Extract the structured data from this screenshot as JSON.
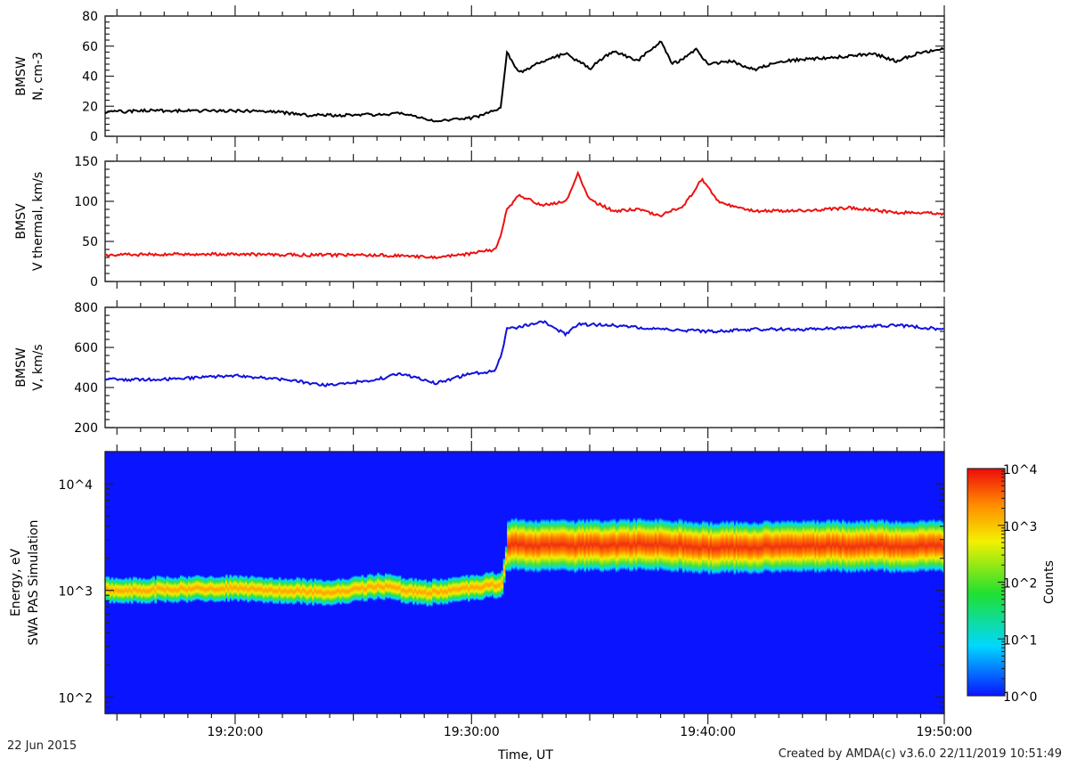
{
  "chart_data": [
    {
      "type": "line",
      "ylabel": [
        "BMSW",
        "N, cm-3"
      ],
      "ylim": [
        0,
        80
      ],
      "yticks": [
        0,
        20,
        40,
        60,
        80
      ],
      "color": "#000000",
      "series": [
        {
          "x": [
            "19:14:30",
            "19:16:00",
            "19:18:00",
            "19:20:00",
            "19:22:00",
            "19:23:00",
            "19:25:00",
            "19:27:00",
            "19:28:30",
            "19:30:00",
            "19:31:00",
            "19:31:15",
            "19:31:30",
            "19:32:00",
            "19:33:00",
            "19:34:00",
            "19:35:00",
            "19:36:00",
            "19:37:00",
            "19:38:00",
            "19:38:30",
            "19:39:00",
            "19:39:30",
            "19:40:00",
            "19:41:00",
            "19:42:00",
            "19:43:00",
            "19:45:00",
            "19:47:00",
            "19:48:00",
            "19:49:00",
            "19:50:00"
          ],
          "y": [
            16,
            17,
            17,
            17,
            16,
            14,
            14,
            15,
            10,
            12,
            17,
            20,
            56,
            42,
            50,
            55,
            45,
            57,
            50,
            63,
            48,
            52,
            58,
            48,
            50,
            44,
            50,
            52,
            55,
            50,
            56,
            58
          ]
        }
      ]
    },
    {
      "type": "line",
      "ylabel": [
        "BMSV",
        "V thermal, km/s"
      ],
      "ylim": [
        0,
        150
      ],
      "yticks": [
        0,
        50,
        100,
        150
      ],
      "color": "#ee1111",
      "series": [
        {
          "x": [
            "19:14:30",
            "19:17:00",
            "19:20:00",
            "19:23:00",
            "19:26:00",
            "19:28:30",
            "19:30:00",
            "19:31:00",
            "19:31:15",
            "19:31:30",
            "19:32:00",
            "19:33:00",
            "19:34:00",
            "19:34:30",
            "19:35:00",
            "19:36:00",
            "19:37:00",
            "19:38:00",
            "19:39:00",
            "19:39:45",
            "19:40:30",
            "19:42:00",
            "19:44:00",
            "19:46:00",
            "19:48:00",
            "19:50:00"
          ],
          "y": [
            33,
            34,
            34,
            33,
            33,
            30,
            35,
            40,
            60,
            90,
            108,
            95,
            100,
            135,
            102,
            88,
            90,
            82,
            95,
            128,
            98,
            88,
            88,
            92,
            86,
            85
          ]
        }
      ]
    },
    {
      "type": "line",
      "ylabel": [
        "BMSW",
        "V, km/s"
      ],
      "ylim": [
        200,
        800
      ],
      "yticks": [
        200,
        400,
        600,
        800
      ],
      "color": "#1111dd",
      "series": [
        {
          "x": [
            "19:14:30",
            "19:17:00",
            "19:20:00",
            "19:22:00",
            "19:24:00",
            "19:26:00",
            "19:27:00",
            "19:28:30",
            "19:30:00",
            "19:31:00",
            "19:31:15",
            "19:31:30",
            "19:32:00",
            "19:33:00",
            "19:34:00",
            "19:34:30",
            "19:36:00",
            "19:38:00",
            "19:40:00",
            "19:42:00",
            "19:44:00",
            "19:46:00",
            "19:48:00",
            "19:50:00"
          ],
          "y": [
            440,
            440,
            460,
            440,
            410,
            440,
            470,
            420,
            470,
            480,
            560,
            690,
            700,
            730,
            665,
            715,
            710,
            690,
            680,
            690,
            690,
            700,
            710,
            690
          ]
        }
      ]
    },
    {
      "type": "heatmap",
      "ylabel": [
        "Energy, eV",
        "SWA PAS Simulation"
      ],
      "yscale": "log",
      "ylim": [
        70,
        20000
      ],
      "yticks": [
        "10^2",
        "10^3",
        "10^4"
      ],
      "zscale": "log",
      "zlim": [
        1,
        10000
      ],
      "colorbar_label": "Counts",
      "colorbar_ticks": [
        "10^0",
        "10^1",
        "10^2",
        "10^3",
        "10^4"
      ],
      "background": "#0a14ff",
      "band_centre_eV": {
        "x": [
          "19:14:30",
          "19:20:00",
          "19:24:00",
          "19:26:00",
          "19:28:00",
          "19:30:00",
          "19:31:15",
          "19:31:30",
          "19:34:00",
          "19:38:00",
          "19:40:00",
          "19:45:00",
          "19:50:00"
        ],
        "y": [
          1000,
          1050,
          950,
          1100,
          950,
          1050,
          1150,
          2700,
          2600,
          2700,
          2500,
          2600,
          2600
        ]
      }
    }
  ],
  "x_axis": {
    "label": "Time, UT",
    "range": [
      "19:14:30",
      "19:50:00"
    ],
    "ticks": [
      "19:20:00",
      "19:30:00",
      "19:40:00",
      "19:50:00"
    ]
  },
  "footer": {
    "date": "22 Jun 2015",
    "credit": "Created by AMDA(c) v3.6.0 22/11/2019 10:51:49"
  }
}
